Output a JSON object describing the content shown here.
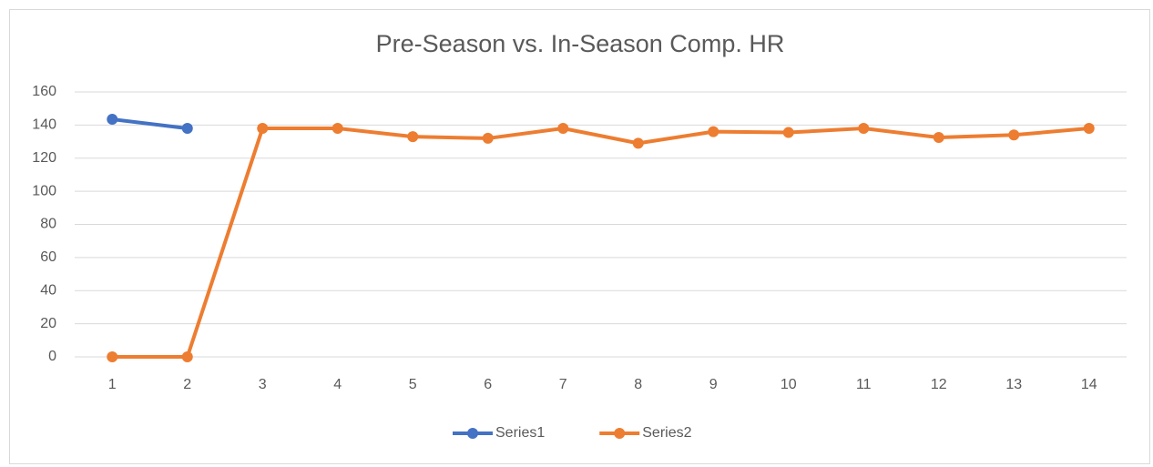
{
  "chart_data": {
    "type": "line",
    "title": "Pre-Season vs. In-Season Comp. HR",
    "categories": [
      "1",
      "2",
      "3",
      "4",
      "5",
      "6",
      "7",
      "8",
      "9",
      "10",
      "11",
      "12",
      "13",
      "14"
    ],
    "series": [
      {
        "name": "Series1",
        "color": "#4472c4",
        "values": [
          143.5,
          138,
          null,
          null,
          null,
          null,
          null,
          null,
          null,
          null,
          null,
          null,
          null,
          null
        ]
      },
      {
        "name": "Series2",
        "color": "#ed7d31",
        "values": [
          0,
          0,
          138,
          138,
          133,
          132,
          138,
          129,
          136,
          135.5,
          138,
          132.5,
          134,
          138
        ]
      }
    ],
    "ylim": [
      0,
      160
    ],
    "yticks": [
      0,
      20,
      40,
      60,
      80,
      100,
      120,
      140,
      160
    ],
    "grid": true,
    "legend": "bottom"
  }
}
